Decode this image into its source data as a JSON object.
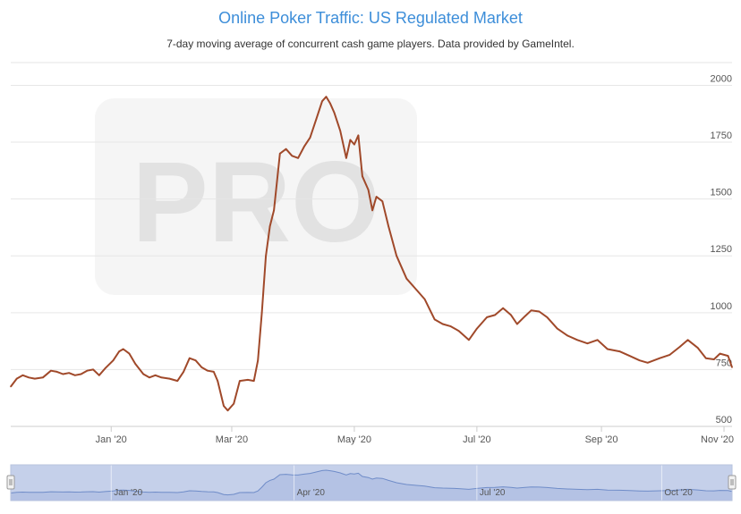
{
  "title": "Online Poker Traffic: US Regulated Market",
  "subtitle": "7-day moving average of concurrent cash game players. Data provided by GameIntel.",
  "watermark": "PRO",
  "colors": {
    "title": "#3d8ed9",
    "line": "#a0492a",
    "grid": "#e6e6e6",
    "navigator_fill": "#c5d0ea",
    "navigator_line": "#6f8cc8",
    "navigator_unselected": "#e9ecf2",
    "watermark": "#e2e2e2"
  },
  "chart_data": {
    "type": "line",
    "title": "Online Poker Traffic: US Regulated Market",
    "subtitle": "7-day moving average of concurrent cash game players. Data provided by GameIntel.",
    "xlabel": "",
    "ylabel": "",
    "x_range": [
      "2019-11-12",
      "2020-11-05"
    ],
    "ylim": [
      500,
      2100
    ],
    "y_axis_side": "right",
    "grid": true,
    "legend": "none",
    "y_ticks": [
      "500",
      "750",
      "1000",
      "1250",
      "1500",
      "1750",
      "2000"
    ],
    "x_ticks": [
      {
        "date": "2020-01-01",
        "label": "Jan '20"
      },
      {
        "date": "2020-03-01",
        "label": "Mar '20"
      },
      {
        "date": "2020-05-01",
        "label": "May '20"
      },
      {
        "date": "2020-07-01",
        "label": "Jul '20"
      },
      {
        "date": "2020-09-01",
        "label": "Sep '20"
      },
      {
        "date": "2020-11-01",
        "label": "Nov '20"
      }
    ],
    "series": [
      {
        "values": [
          [
            "2019-11-12",
            675
          ],
          [
            "2019-11-15",
            710
          ],
          [
            "2019-11-18",
            725
          ],
          [
            "2019-11-21",
            715
          ],
          [
            "2019-11-24",
            710
          ],
          [
            "2019-11-28",
            715
          ],
          [
            "2019-12-02",
            745
          ],
          [
            "2019-12-05",
            740
          ],
          [
            "2019-12-08",
            730
          ],
          [
            "2019-12-11",
            735
          ],
          [
            "2019-12-14",
            725
          ],
          [
            "2019-12-17",
            730
          ],
          [
            "2019-12-20",
            745
          ],
          [
            "2019-12-23",
            750
          ],
          [
            "2019-12-26",
            725
          ],
          [
            "2019-12-29",
            755
          ],
          [
            "2020-01-02",
            790
          ],
          [
            "2020-01-05",
            830
          ],
          [
            "2020-01-07",
            840
          ],
          [
            "2020-01-10",
            820
          ],
          [
            "2020-01-13",
            775
          ],
          [
            "2020-01-17",
            730
          ],
          [
            "2020-01-20",
            715
          ],
          [
            "2020-01-23",
            725
          ],
          [
            "2020-01-26",
            715
          ],
          [
            "2020-01-30",
            710
          ],
          [
            "2020-02-03",
            700
          ],
          [
            "2020-02-06",
            740
          ],
          [
            "2020-02-09",
            800
          ],
          [
            "2020-02-12",
            790
          ],
          [
            "2020-02-15",
            760
          ],
          [
            "2020-02-18",
            745
          ],
          [
            "2020-02-21",
            740
          ],
          [
            "2020-02-23",
            700
          ],
          [
            "2020-02-26",
            590
          ],
          [
            "2020-02-28",
            570
          ],
          [
            "2020-03-02",
            600
          ],
          [
            "2020-03-05",
            700
          ],
          [
            "2020-03-09",
            705
          ],
          [
            "2020-03-12",
            700
          ],
          [
            "2020-03-14",
            790
          ],
          [
            "2020-03-16",
            1000
          ],
          [
            "2020-03-18",
            1250
          ],
          [
            "2020-03-20",
            1380
          ],
          [
            "2020-03-22",
            1450
          ],
          [
            "2020-03-25",
            1700
          ],
          [
            "2020-03-28",
            1720
          ],
          [
            "2020-03-31",
            1690
          ],
          [
            "2020-04-03",
            1680
          ],
          [
            "2020-04-06",
            1730
          ],
          [
            "2020-04-09",
            1770
          ],
          [
            "2020-04-12",
            1850
          ],
          [
            "2020-04-15",
            1930
          ],
          [
            "2020-04-17",
            1950
          ],
          [
            "2020-04-19",
            1920
          ],
          [
            "2020-04-21",
            1880
          ],
          [
            "2020-04-24",
            1800
          ],
          [
            "2020-04-27",
            1680
          ],
          [
            "2020-04-29",
            1760
          ],
          [
            "2020-05-01",
            1740
          ],
          [
            "2020-05-03",
            1780
          ],
          [
            "2020-05-05",
            1600
          ],
          [
            "2020-05-08",
            1540
          ],
          [
            "2020-05-10",
            1450
          ],
          [
            "2020-05-12",
            1510
          ],
          [
            "2020-05-15",
            1490
          ],
          [
            "2020-05-18",
            1380
          ],
          [
            "2020-05-22",
            1250
          ],
          [
            "2020-05-27",
            1150
          ],
          [
            "2020-06-01",
            1100
          ],
          [
            "2020-06-05",
            1060
          ],
          [
            "2020-06-10",
            970
          ],
          [
            "2020-06-14",
            950
          ],
          [
            "2020-06-18",
            940
          ],
          [
            "2020-06-22",
            920
          ],
          [
            "2020-06-27",
            880
          ],
          [
            "2020-07-01",
            930
          ],
          [
            "2020-07-06",
            980
          ],
          [
            "2020-07-10",
            990
          ],
          [
            "2020-07-14",
            1020
          ],
          [
            "2020-07-18",
            990
          ],
          [
            "2020-07-21",
            950
          ],
          [
            "2020-07-25",
            985
          ],
          [
            "2020-07-28",
            1010
          ],
          [
            "2020-08-01",
            1005
          ],
          [
            "2020-08-05",
            980
          ],
          [
            "2020-08-10",
            930
          ],
          [
            "2020-08-15",
            900
          ],
          [
            "2020-08-20",
            880
          ],
          [
            "2020-08-25",
            865
          ],
          [
            "2020-08-30",
            880
          ],
          [
            "2020-09-04",
            840
          ],
          [
            "2020-09-10",
            830
          ],
          [
            "2020-09-15",
            810
          ],
          [
            "2020-09-20",
            790
          ],
          [
            "2020-09-24",
            780
          ],
          [
            "2020-09-30",
            800
          ],
          [
            "2020-10-05",
            815
          ],
          [
            "2020-10-10",
            850
          ],
          [
            "2020-10-14",
            880
          ],
          [
            "2020-10-19",
            845
          ],
          [
            "2020-10-23",
            800
          ],
          [
            "2020-10-27",
            795
          ],
          [
            "2020-10-30",
            820
          ],
          [
            "2020-11-03",
            810
          ],
          [
            "2020-11-05",
            760
          ]
        ]
      }
    ]
  },
  "navigator": {
    "x_ticks": [
      {
        "date": "2020-01-01",
        "label": "Jan '20"
      },
      {
        "date": "2020-04-01",
        "label": "Apr '20"
      },
      {
        "date": "2020-07-01",
        "label": "Jul '20"
      },
      {
        "date": "2020-10-01",
        "label": "Oct '20"
      }
    ]
  }
}
